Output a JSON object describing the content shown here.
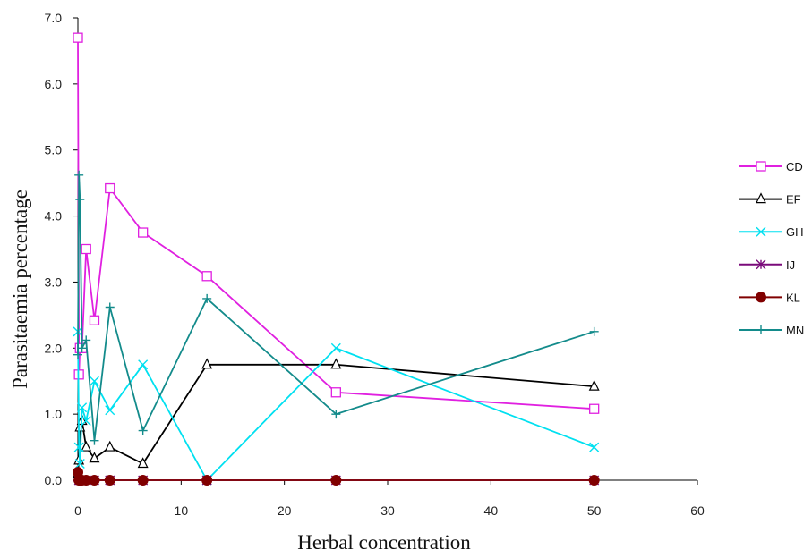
{
  "chart_data": {
    "type": "line",
    "title": "",
    "xlabel": "Herbal concentration",
    "ylabel": "Parasitaemia percentage",
    "xlim": [
      0,
      60
    ],
    "ylim": [
      0,
      7
    ],
    "x_ticks": [
      0,
      10,
      20,
      30,
      40,
      50,
      60
    ],
    "y_ticks": [
      0,
      1,
      2,
      3,
      4,
      5,
      6,
      7
    ],
    "y_tick_labels": [
      "0.0",
      "1.0",
      "2.0",
      "3.0",
      "4.0",
      "5.0",
      "6.0",
      "7.0"
    ],
    "grid": false,
    "legend_position": "right",
    "series": [
      {
        "name": "CD",
        "color": "#e020e0",
        "marker": "square",
        "x": [
          0.0,
          0.1,
          0.2,
          0.4,
          0.8,
          1.6,
          3.1,
          6.3,
          12.5,
          25,
          50
        ],
        "y": [
          6.7,
          1.6,
          2.0,
          2.0,
          3.5,
          2.42,
          4.42,
          3.75,
          3.09,
          1.33,
          1.08
        ]
      },
      {
        "name": "EF",
        "color": "#000000",
        "marker": "triangle",
        "x": [
          0.0,
          0.1,
          0.2,
          0.4,
          0.8,
          1.6,
          3.1,
          6.3,
          12.5,
          25,
          50
        ],
        "y": [
          0.1,
          0.3,
          0.8,
          0.9,
          0.5,
          0.33,
          0.5,
          0.25,
          1.75,
          1.75,
          1.42
        ]
      },
      {
        "name": "GH",
        "color": "#00e0f0",
        "marker": "x",
        "x": [
          0.0,
          0.1,
          0.2,
          0.4,
          0.8,
          1.6,
          3.1,
          6.3,
          12.5,
          25,
          50
        ],
        "y": [
          2.25,
          0.5,
          0.25,
          1.1,
          0.9,
          1.5,
          1.06,
          1.75,
          0.0,
          2.0,
          0.5
        ]
      },
      {
        "name": "IJ",
        "color": "#7a0a7a",
        "marker": "asterisk",
        "x": [
          0.0,
          0.1,
          0.2,
          0.4,
          0.8,
          1.6,
          3.1,
          6.3,
          12.5,
          25,
          50
        ],
        "y": [
          0.05,
          0.0,
          0.0,
          0.0,
          0.0,
          0.0,
          0.0,
          0.0,
          0.0,
          0.0,
          0.0
        ]
      },
      {
        "name": "KL",
        "color": "#800000",
        "marker": "circle",
        "x": [
          0.0,
          0.1,
          0.2,
          0.4,
          0.8,
          1.6,
          3.1,
          6.3,
          12.5,
          25,
          50
        ],
        "y": [
          0.12,
          0.0,
          0.0,
          0.0,
          0.0,
          0.0,
          0.0,
          0.0,
          0.0,
          0.0,
          0.0
        ]
      },
      {
        "name": "MN",
        "color": "#138b8b",
        "marker": "plus",
        "x": [
          0.0,
          0.1,
          0.2,
          0.4,
          0.8,
          1.6,
          3.1,
          6.3,
          12.5,
          25,
          50
        ],
        "y": [
          1.9,
          4.62,
          4.25,
          2.0,
          2.12,
          0.6,
          2.62,
          0.75,
          2.75,
          1.0,
          2.25
        ]
      }
    ]
  }
}
